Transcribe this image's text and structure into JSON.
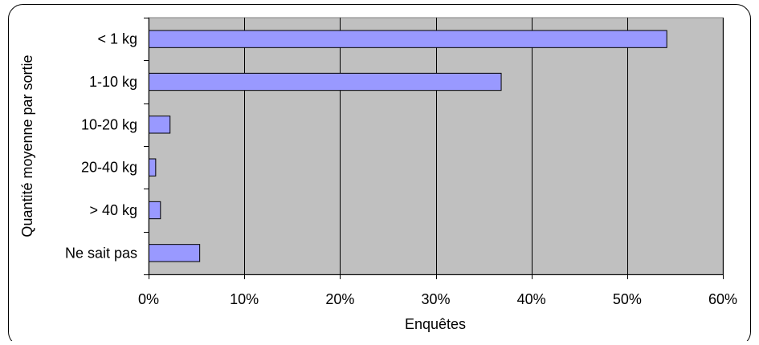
{
  "chart_data": {
    "type": "bar",
    "orientation": "horizontal",
    "categories": [
      "< 1 kg",
      "1-10 kg",
      "10-20 kg",
      "20-40 kg",
      "> 40 kg",
      "Ne sait pas"
    ],
    "values": [
      54.1,
      36.8,
      2.2,
      0.7,
      1.2,
      5.3
    ],
    "xlabel": "Enquêtes",
    "ylabel": "Quantité moyenne par sortie",
    "xlim": [
      0,
      60
    ],
    "xticks": [
      0,
      10,
      20,
      30,
      40,
      50,
      60
    ],
    "xtick_labels": [
      "0%",
      "10%",
      "20%",
      "30%",
      "40%",
      "50%",
      "60%"
    ],
    "grid": true,
    "colors": {
      "bar_fill": "#9999ff",
      "bar_stroke": "#000000",
      "plot_background": "#c0c0c0",
      "gridline": "#000000"
    }
  }
}
